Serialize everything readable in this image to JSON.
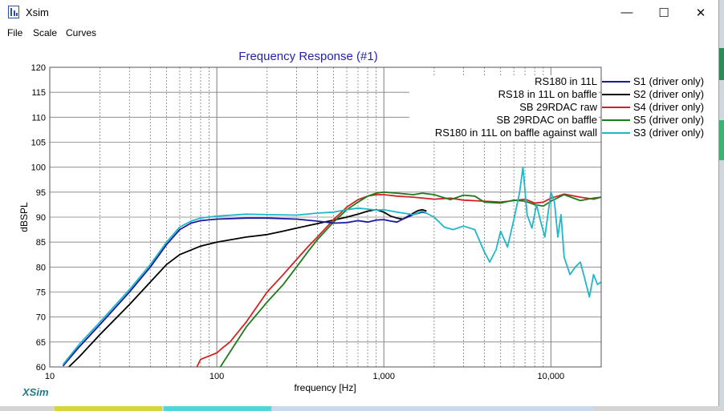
{
  "window": {
    "title": "Xsim",
    "icon": "xsim-app-icon",
    "controls": {
      "minimize": "—",
      "maximize": "☐",
      "close": "✕"
    }
  },
  "menu": [
    "File",
    "Scale",
    "Curves"
  ],
  "brand": "XSim",
  "colors": {
    "title": "#2323b0",
    "S1": "#1a1a9e",
    "S2": "#000000",
    "S4": "#d22222",
    "S5": "#1d7a1d",
    "S3": "#1fb8c8",
    "grid": "#7f7f7f",
    "strip_yellow": "#d6d63a",
    "strip_cyan": "#4fd6d6",
    "strip_blue": "#c9d9ef"
  },
  "chart_data": {
    "type": "line",
    "title": "Frequency Response (#1)",
    "xlabel": "frequency [Hz]",
    "ylabel": "dBSPL",
    "xscale": "log",
    "xlim": [
      10,
      20000
    ],
    "ylim": [
      60,
      120
    ],
    "grid": true,
    "legend_position": "top-right",
    "x_tick_labels": [
      "10",
      "100",
      "1,000",
      "10,000"
    ],
    "y_tick_labels": [
      "60",
      "65",
      "70",
      "75",
      "80",
      "85",
      "90",
      "95",
      "100",
      "105",
      "110",
      "115",
      "120"
    ],
    "series": [
      {
        "id": "S1",
        "name": "RS180 in 11L",
        "label": "S1 (driver only)",
        "x": [
          12,
          15,
          20,
          30,
          40,
          50,
          60,
          70,
          80,
          100,
          150,
          200,
          300,
          400,
          500,
          600,
          700,
          800,
          900,
          1000,
          1100,
          1200,
          1300,
          1500,
          1700,
          1800
        ],
        "y": [
          60.2,
          64,
          68.5,
          75,
          80,
          84.5,
          87.5,
          88.8,
          89.3,
          89.6,
          89.8,
          89.8,
          89.6,
          89.2,
          88.8,
          88.9,
          89.3,
          89,
          89.4,
          89.5,
          89.2,
          89,
          89.6,
          90.5,
          91,
          90.8
        ]
      },
      {
        "id": "S2",
        "name": "RS18 in 11L on baffle",
        "label": "S2 (driver only)",
        "x": [
          13,
          15,
          20,
          30,
          40,
          50,
          60,
          80,
          100,
          150,
          200,
          250,
          300,
          400,
          500,
          600,
          700,
          800,
          900,
          1000,
          1100,
          1200,
          1300,
          1400,
          1500,
          1600,
          1700,
          1800
        ],
        "y": [
          60,
          62,
          66.5,
          72.5,
          77,
          80.5,
          82.5,
          84.2,
          85,
          86,
          86.5,
          87.2,
          87.8,
          88.7,
          89.4,
          90,
          90.6,
          91.2,
          91.5,
          91,
          90.2,
          89.8,
          89.6,
          90.2,
          90.8,
          91.3,
          91.5,
          91.2
        ]
      },
      {
        "id": "S4",
        "name": "SB 29RDAC raw",
        "label": "S4 (driver only)",
        "x": [
          76,
          80,
          90,
          100,
          110,
          120,
          150,
          200,
          250,
          300,
          350,
          400,
          500,
          600,
          700,
          800,
          900,
          1000,
          1200,
          1500,
          2000,
          2500,
          3000,
          4000,
          5000,
          6000,
          7000,
          8000,
          9000,
          10000,
          12000,
          15000,
          18000,
          20000
        ],
        "y": [
          60,
          61.5,
          62.2,
          62.8,
          64,
          65,
          69,
          75,
          78.5,
          81.5,
          84,
          86,
          89.5,
          92,
          93.5,
          94.2,
          94.5,
          94.5,
          94.2,
          94,
          93.6,
          93.8,
          93.4,
          93.2,
          93,
          93.3,
          93.6,
          92.8,
          93,
          93.8,
          94.6,
          94,
          93.6,
          94
        ]
      },
      {
        "id": "S5",
        "name": "SB 29RDAC on baffle",
        "label": "S5 (driver only)",
        "x": [
          105,
          120,
          150,
          200,
          250,
          300,
          350,
          400,
          500,
          600,
          700,
          800,
          900,
          1000,
          1200,
          1500,
          1700,
          2000,
          2500,
          3000,
          3500,
          4000,
          5000,
          6000,
          7000,
          8000,
          9000,
          10000,
          12000,
          15000,
          18000,
          20000
        ],
        "y": [
          60,
          63,
          68,
          73,
          76.5,
          80,
          83,
          85.5,
          89,
          91.5,
          93,
          94.2,
          94.8,
          95,
          94.8,
          94.5,
          94.8,
          94.5,
          93.5,
          94.4,
          94.2,
          93,
          92.8,
          93.4,
          93.2,
          92.5,
          92.2,
          93.2,
          94.5,
          93.3,
          93.8,
          94
        ]
      },
      {
        "id": "S3",
        "name": "RS180 in 11L on baffle against wall",
        "label": "S3 (driver only)",
        "x": [
          12,
          15,
          20,
          30,
          40,
          50,
          60,
          70,
          80,
          100,
          150,
          200,
          300,
          400,
          500,
          600,
          700,
          800,
          900,
          1000,
          1200,
          1500,
          1700,
          2000,
          2300,
          2600,
          3000,
          3500,
          4000,
          4300,
          4700,
          5000,
          5500,
          6000,
          6500,
          6800,
          7200,
          7700,
          8200,
          8700,
          9200,
          10000,
          10500,
          11000,
          11500,
          12000,
          13000,
          14000,
          15000,
          16000,
          17000,
          18000,
          19000,
          20000
        ],
        "y": [
          60.5,
          64.5,
          69,
          75.5,
          80.5,
          85,
          88,
          89.2,
          89.8,
          90.2,
          90.6,
          90.5,
          90.4,
          90.8,
          91,
          91.5,
          91.8,
          91.6,
          91.4,
          91.5,
          91,
          90.5,
          91.2,
          90,
          88,
          87.5,
          88.2,
          87.5,
          83,
          81,
          83.5,
          87.2,
          84,
          89.5,
          95,
          100,
          90.5,
          87.8,
          92.5,
          89,
          86,
          95,
          93,
          86,
          90.5,
          82,
          78.5,
          80,
          81,
          77.5,
          74,
          78.5,
          76.5,
          77
        ]
      }
    ]
  }
}
